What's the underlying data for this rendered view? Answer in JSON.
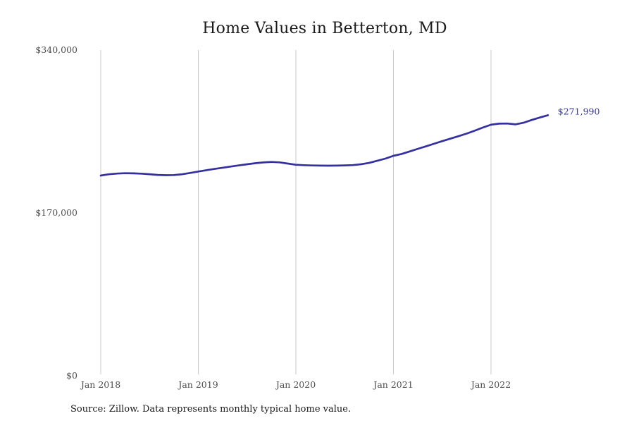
{
  "title": "Home Values in Betterton, MD",
  "source_note": "Source: Zillow. Data represents monthly typical home value.",
  "colors": {
    "line": "#34309d",
    "end_label": "#31339b",
    "gridline": "#c9c9c9",
    "axis_text": "#4d4d4d",
    "title_text": "#1a1a1a",
    "background": "#ffffff"
  },
  "chart_data": {
    "type": "line",
    "title": "Home Values in Betterton, MD",
    "xlabel": "",
    "ylabel": "",
    "ylim": [
      0,
      340000
    ],
    "y_ticks": [
      {
        "value": 0,
        "label": "$0"
      },
      {
        "value": 170000,
        "label": "$170,000"
      },
      {
        "value": 340000,
        "label": "$340,000"
      }
    ],
    "x_ticks": [
      {
        "month_index": 0,
        "label": "Jan 2018"
      },
      {
        "month_index": 12,
        "label": "Jan 2019"
      },
      {
        "month_index": 24,
        "label": "Jan 2020"
      },
      {
        "month_index": 36,
        "label": "Jan 2021"
      },
      {
        "month_index": 48,
        "label": "Jan 2022"
      }
    ],
    "grid": "vertical-only",
    "legend": "none",
    "x_start": "Jan 2018",
    "x_end": "Aug 2022",
    "frequency": "monthly",
    "unit": "USD",
    "end_label": "$271,990",
    "end_value": 271990,
    "values": [
      209000,
      210300,
      211100,
      211400,
      211300,
      211000,
      210400,
      209700,
      209400,
      209500,
      210300,
      211700,
      213200,
      214600,
      215900,
      217200,
      218400,
      219600,
      220800,
      221900,
      222700,
      223200,
      222800,
      221500,
      220300,
      219800,
      219500,
      219400,
      219300,
      219400,
      219600,
      219900,
      220800,
      222200,
      224400,
      226700,
      229600,
      231500,
      234200,
      236900,
      239500,
      242200,
      244900,
      247500,
      250100,
      252800,
      255800,
      259100,
      262100,
      263200,
      263300,
      262400,
      264100,
      267000,
      269600,
      271990
    ]
  }
}
